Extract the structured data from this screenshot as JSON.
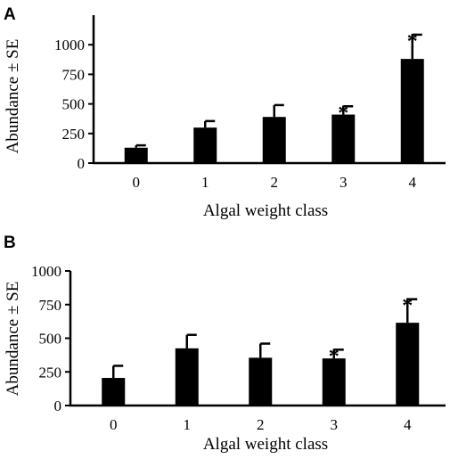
{
  "chart_data": [
    {
      "type": "bar",
      "panel": "A",
      "categories": [
        "0",
        "1",
        "2",
        "3",
        "4"
      ],
      "values": [
        130,
        300,
        390,
        410,
        880
      ],
      "errors": [
        20,
        55,
        100,
        70,
        205
      ],
      "significant": [
        false,
        false,
        false,
        true,
        true
      ],
      "annotation": "*",
      "xlabel": "Algal weight class",
      "ylabel": "Abundance ± SE",
      "ylim": [
        0,
        1250
      ],
      "yticks": [
        0,
        250,
        500,
        750,
        1000
      ],
      "grid": false,
      "bar_color": "#000000"
    },
    {
      "type": "bar",
      "panel": "B",
      "categories": [
        "0",
        "1",
        "2",
        "3",
        "4"
      ],
      "values": [
        205,
        425,
        355,
        350,
        615
      ],
      "errors": [
        90,
        100,
        105,
        65,
        175
      ],
      "significant": [
        false,
        false,
        false,
        true,
        true
      ],
      "annotation": "*",
      "xlabel": "Algal weight class",
      "ylabel": "Abundance ± SE",
      "ylim": [
        0,
        1000
      ],
      "yticks": [
        0,
        250,
        500,
        750,
        1000
      ],
      "grid": false,
      "bar_color": "#000000"
    }
  ]
}
